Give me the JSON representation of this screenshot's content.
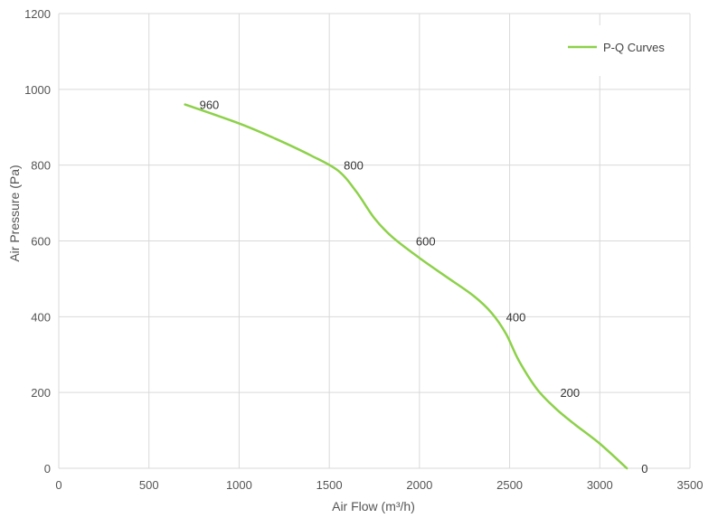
{
  "chart_data": {
    "type": "line",
    "xlabel": "Air Flow  (m³/h)",
    "ylabel": "Air Pressure  (Pa)",
    "xlim": [
      0,
      3500
    ],
    "ylim": [
      0,
      1200
    ],
    "xticks": [
      0,
      500,
      1000,
      1500,
      2000,
      2500,
      3000,
      3500
    ],
    "yticks": [
      0,
      200,
      400,
      600,
      800,
      1000,
      1200
    ],
    "grid": true,
    "legend": {
      "position": "top-right",
      "entries": [
        "P-Q Curves"
      ]
    },
    "series": [
      {
        "name": "P-Q Curves",
        "color": "#8dd14a",
        "x": [
          700,
          1000,
          1200,
          1400,
          1550,
          1650,
          1750,
          1850,
          2000,
          2150,
          2300,
          2400,
          2480,
          2550,
          2650,
          2750,
          2850,
          3000,
          3150
        ],
        "y": [
          960,
          910,
          870,
          825,
          785,
          730,
          660,
          610,
          555,
          505,
          455,
          410,
          355,
          285,
          210,
          160,
          120,
          65,
          0
        ]
      }
    ],
    "annotations": [
      {
        "text": "960",
        "x": 700,
        "y": 960
      },
      {
        "text": "800",
        "x": 1500,
        "y": 800
      },
      {
        "text": "600",
        "x": 1900,
        "y": 600
      },
      {
        "text": "400",
        "x": 2400,
        "y": 400
      },
      {
        "text": "200",
        "x": 2700,
        "y": 200
      },
      {
        "text": "0",
        "x": 3150,
        "y": 0
      }
    ]
  }
}
